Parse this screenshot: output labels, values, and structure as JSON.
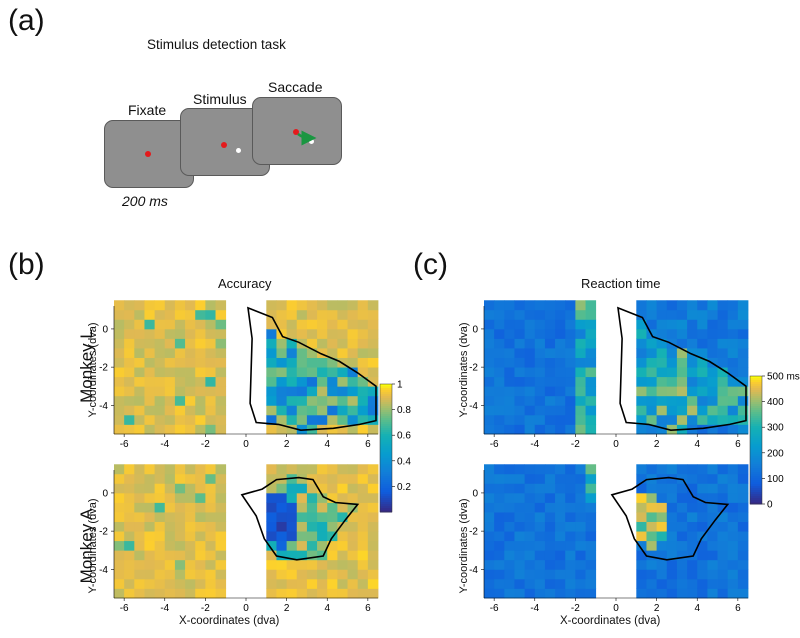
{
  "panel_a": {
    "letter": "(a)",
    "title": "Stimulus detection task",
    "steps": [
      "Fixate",
      "Stimulus",
      "Saccade"
    ],
    "duration": "200 ms"
  },
  "panel_b": {
    "letter": "(b)",
    "title": "Accuracy"
  },
  "panel_c": {
    "letter": "(c)",
    "title": "Reaction time"
  },
  "rows": {
    "top": "Monkey L",
    "bottom": "Monkey A"
  },
  "axes": {
    "ylabel": "Y-coordinates (dva)",
    "xlabel": "X-coordinates (dva)",
    "xticks": [
      -6,
      -4,
      -2,
      0,
      2,
      4,
      6
    ],
    "yticks_top": [
      0,
      -2,
      -4
    ],
    "yticks_bottom": [
      0,
      -2,
      -4
    ]
  },
  "colorbars": {
    "accuracy": {
      "ticks": [
        "1",
        "0.8",
        "0.6",
        "0.4",
        "0.2"
      ]
    },
    "reaction_time": {
      "ticks": [
        "500 ms",
        "400",
        "300",
        "200",
        "100",
        "0"
      ]
    }
  },
  "colors": {
    "fix_dot": "#e41a1c",
    "stim_dot": "#ffffff",
    "arrow": "#1a9641",
    "screen": "#8f8f8f"
  },
  "chart_data": [
    {
      "type": "heatmap",
      "title": "Accuracy",
      "row": "Monkey L",
      "xlim": [
        -6.5,
        6.5
      ],
      "ylim": [
        -5.5,
        1.2
      ],
      "clim": [
        0,
        1
      ],
      "left_hemifield_mean": 0.9,
      "right_region_mean": 0.55
    },
    {
      "type": "heatmap",
      "title": "Accuracy",
      "row": "Monkey A",
      "xlim": [
        -6.5,
        6.5
      ],
      "ylim": [
        -5.5,
        1.2
      ],
      "clim": [
        0,
        1
      ],
      "left_hemifield_mean": 0.9,
      "right_region_min": 0.1
    },
    {
      "type": "heatmap",
      "title": "Reaction time",
      "row": "Monkey L",
      "xlim": [
        -6.5,
        6.5
      ],
      "ylim": [
        -5.5,
        1.2
      ],
      "clim": [
        0,
        500
      ],
      "unit": "ms",
      "left_hemifield_mean": 130,
      "right_region_mean": 260
    },
    {
      "type": "heatmap",
      "title": "Reaction time",
      "row": "Monkey A",
      "xlim": [
        -6.5,
        6.5
      ],
      "ylim": [
        -5.5,
        1.2
      ],
      "clim": [
        0,
        500
      ],
      "unit": "ms",
      "left_hemifield_mean": 110,
      "right_region_max": 450
    }
  ]
}
